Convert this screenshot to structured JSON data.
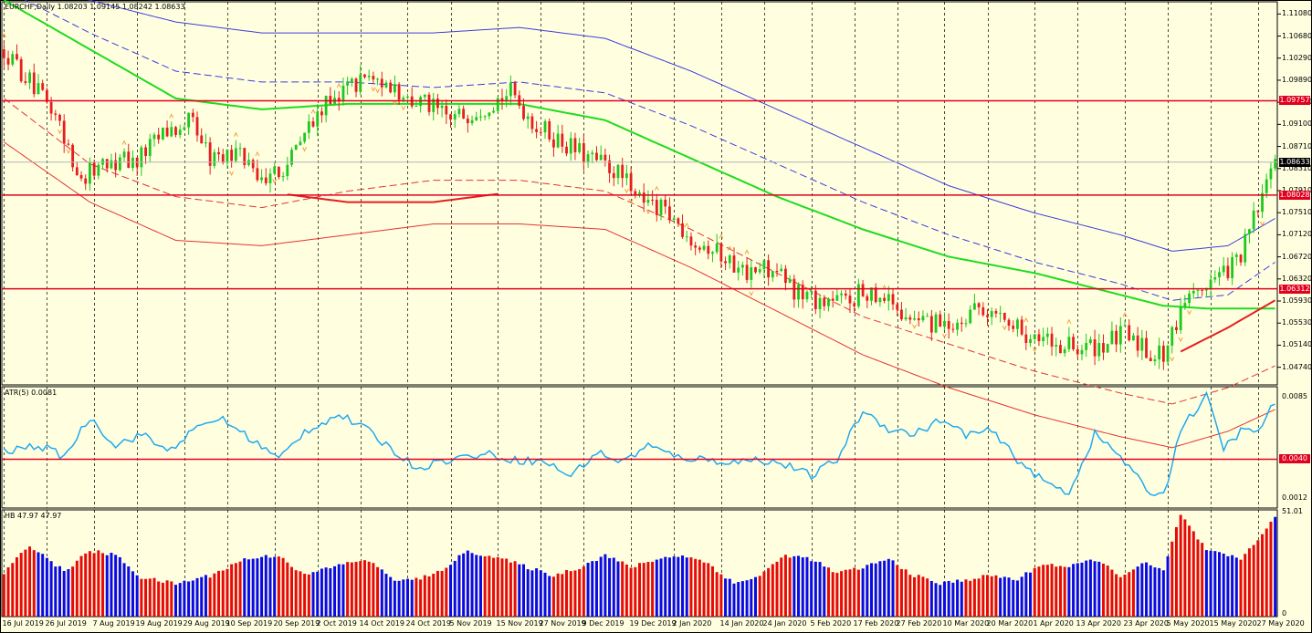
{
  "chart_data": [
    {
      "type": "candlestick",
      "panel": "price",
      "title": "EURCHF,Daily  1.08203 1.09145 1.08242 1.08633",
      "ylim": [
        1.0455,
        1.1157
      ],
      "ticks": [
        "1.11080",
        "1.10680",
        "1.10290",
        "1.09890",
        "1.09490",
        "1.09100",
        "1.08710",
        "1.08310",
        "1.07910",
        "1.07510",
        "1.07120",
        "1.06720",
        "1.06320",
        "1.05930",
        "1.05530",
        "1.05140",
        "1.04740"
      ],
      "price_lines": [
        {
          "value": 1.09757,
          "label": "1.09757",
          "color": "#e1001e"
        },
        {
          "value": 1.08028,
          "label": "1.08028",
          "color": "#e1001e"
        },
        {
          "value": 1.06312,
          "label": "1.06312",
          "color": "#e1001e"
        }
      ],
      "current_price": {
        "value": 1.08633,
        "label": "1.08633"
      },
      "anchor_closes": [
        [
          0,
          1.107
        ],
        [
          6,
          1.101
        ],
        [
          12,
          1.095
        ],
        [
          18,
          1.083
        ],
        [
          24,
          1.087
        ],
        [
          30,
          1.086
        ],
        [
          38,
          1.092
        ],
        [
          44,
          1.094
        ],
        [
          48,
          1.087
        ],
        [
          54,
          1.088
        ],
        [
          60,
          1.084
        ],
        [
          66,
          1.086
        ],
        [
          72,
          1.094
        ],
        [
          78,
          1.099
        ],
        [
          86,
          1.102
        ],
        [
          92,
          1.098
        ],
        [
          98,
          1.097
        ],
        [
          104,
          1.094
        ],
        [
          110,
          1.096
        ],
        [
          118,
          1.099
        ],
        [
          124,
          1.093
        ],
        [
          130,
          1.09
        ],
        [
          136,
          1.087
        ],
        [
          142,
          1.085
        ],
        [
          148,
          1.08
        ],
        [
          154,
          1.077
        ],
        [
          160,
          1.073
        ],
        [
          166,
          1.07
        ],
        [
          172,
          1.066
        ],
        [
          178,
          1.067
        ],
        [
          184,
          1.063
        ],
        [
          190,
          1.061
        ],
        [
          196,
          1.061
        ],
        [
          202,
          1.063
        ],
        [
          208,
          1.06
        ],
        [
          214,
          1.057
        ],
        [
          220,
          1.056
        ],
        [
          226,
          1.06
        ],
        [
          232,
          1.058
        ],
        [
          238,
          1.055
        ],
        [
          244,
          1.053
        ],
        [
          250,
          1.052
        ],
        [
          256,
          1.053
        ],
        [
          262,
          1.055
        ],
        [
          266,
          1.052
        ],
        [
          270,
          1.051
        ],
        [
          275,
          1.06
        ],
        [
          280,
          1.064
        ],
        [
          284,
          1.066
        ],
        [
          288,
          1.069
        ],
        [
          292,
          1.078
        ],
        [
          296,
          1.086
        ]
      ],
      "bands": {
        "green_ma": [
          [
            0,
            1.116
          ],
          [
            20,
            1.107
          ],
          [
            40,
            1.098
          ],
          [
            60,
            1.096
          ],
          [
            80,
            1.097
          ],
          [
            100,
            1.097
          ],
          [
            120,
            1.097
          ],
          [
            140,
            1.094
          ],
          [
            160,
            1.087
          ],
          [
            180,
            1.08
          ],
          [
            200,
            1.074
          ],
          [
            220,
            1.069
          ],
          [
            240,
            1.066
          ],
          [
            260,
            1.062
          ],
          [
            270,
            1.06
          ],
          [
            280,
            1.0595
          ],
          [
            296,
            1.0595
          ]
        ],
        "red_mid": [
          [
            0,
            1.101
          ],
          [
            20,
            1.093
          ],
          [
            40,
            1.085
          ],
          [
            60,
            1.081
          ],
          [
            80,
            1.079
          ],
          [
            100,
            1.079
          ],
          [
            120,
            1.081
          ],
          [
            140,
            1.08
          ],
          [
            160,
            1.074
          ],
          [
            180,
            1.066
          ],
          [
            200,
            1.06
          ],
          [
            220,
            1.055
          ],
          [
            240,
            1.052
          ],
          [
            260,
            1.05
          ],
          [
            270,
            1.05
          ],
          [
            285,
            1.056
          ],
          [
            296,
            1.061
          ]
        ],
        "blue_upper": [
          [
            0,
            1.12
          ],
          [
            20,
            1.116
          ],
          [
            40,
            1.112
          ],
          [
            60,
            1.11
          ],
          [
            80,
            1.11
          ],
          [
            100,
            1.11
          ],
          [
            120,
            1.111
          ],
          [
            140,
            1.109
          ],
          [
            160,
            1.103
          ],
          [
            180,
            1.096
          ],
          [
            200,
            1.089
          ],
          [
            220,
            1.082
          ],
          [
            240,
            1.077
          ],
          [
            260,
            1.073
          ],
          [
            272,
            1.07
          ],
          [
            285,
            1.071
          ],
          [
            296,
            1.076
          ]
        ],
        "blue_mid": [
          [
            0,
            1.118
          ],
          [
            20,
            1.11
          ],
          [
            40,
            1.103
          ],
          [
            60,
            1.101
          ],
          [
            80,
            1.101
          ],
          [
            100,
            1.1
          ],
          [
            120,
            1.101
          ],
          [
            140,
            1.099
          ],
          [
            160,
            1.093
          ],
          [
            180,
            1.086
          ],
          [
            200,
            1.079
          ],
          [
            220,
            1.073
          ],
          [
            240,
            1.068
          ],
          [
            260,
            1.064
          ],
          [
            272,
            1.061
          ],
          [
            285,
            1.062
          ],
          [
            296,
            1.068
          ]
        ],
        "red_lower": [
          [
            0,
            1.098
          ],
          [
            20,
            1.086
          ],
          [
            40,
            1.08
          ],
          [
            60,
            1.078
          ],
          [
            80,
            1.081
          ],
          [
            100,
            1.083
          ],
          [
            120,
            1.083
          ],
          [
            140,
            1.081
          ],
          [
            160,
            1.074
          ],
          [
            180,
            1.066
          ],
          [
            200,
            1.058
          ],
          [
            220,
            1.053
          ],
          [
            240,
            1.048
          ],
          [
            260,
            1.044
          ],
          [
            272,
            1.042
          ],
          [
            285,
            1.045
          ],
          [
            296,
            1.049
          ]
        ],
        "red_lower2": [
          [
            0,
            1.09
          ],
          [
            20,
            1.079
          ],
          [
            40,
            1.072
          ],
          [
            60,
            1.071
          ],
          [
            80,
            1.073
          ],
          [
            100,
            1.075
          ],
          [
            120,
            1.075
          ],
          [
            140,
            1.074
          ],
          [
            160,
            1.067
          ],
          [
            180,
            1.059
          ],
          [
            200,
            1.051
          ],
          [
            220,
            1.045
          ],
          [
            240,
            1.04
          ],
          [
            260,
            1.036
          ],
          [
            272,
            1.034
          ],
          [
            285,
            1.037
          ],
          [
            296,
            1.041
          ]
        ]
      }
    },
    {
      "type": "line",
      "panel": "atr",
      "title": "ATR(5) 0.0081",
      "ylim": [
        0.0005,
        0.0092
      ],
      "ticks": [
        "0.0085",
        "0.0012"
      ],
      "level_line": {
        "value": 0.004,
        "label": "0.0040"
      },
      "anchors": [
        [
          0,
          0.0045
        ],
        [
          8,
          0.005
        ],
        [
          14,
          0.0042
        ],
        [
          20,
          0.007
        ],
        [
          26,
          0.005
        ],
        [
          32,
          0.0058
        ],
        [
          38,
          0.0046
        ],
        [
          44,
          0.006
        ],
        [
          50,
          0.007
        ],
        [
          56,
          0.0058
        ],
        [
          64,
          0.004
        ],
        [
          70,
          0.006
        ],
        [
          78,
          0.0072
        ],
        [
          84,
          0.0062
        ],
        [
          90,
          0.0048
        ],
        [
          96,
          0.0034
        ],
        [
          104,
          0.004
        ],
        [
          112,
          0.0044
        ],
        [
          118,
          0.004
        ],
        [
          126,
          0.0038
        ],
        [
          132,
          0.0028
        ],
        [
          138,
          0.0045
        ],
        [
          144,
          0.0038
        ],
        [
          150,
          0.005
        ],
        [
          156,
          0.0042
        ],
        [
          162,
          0.004
        ],
        [
          170,
          0.0038
        ],
        [
          176,
          0.004
        ],
        [
          182,
          0.0036
        ],
        [
          188,
          0.0028
        ],
        [
          194,
          0.004
        ],
        [
          200,
          0.0075
        ],
        [
          206,
          0.0062
        ],
        [
          212,
          0.0058
        ],
        [
          218,
          0.0068
        ],
        [
          224,
          0.0058
        ],
        [
          230,
          0.006
        ],
        [
          236,
          0.004
        ],
        [
          242,
          0.0024
        ],
        [
          248,
          0.0016
        ],
        [
          254,
          0.0058
        ],
        [
          260,
          0.0042
        ],
        [
          266,
          0.0018
        ],
        [
          270,
          0.0014
        ],
        [
          274,
          0.0062
        ],
        [
          280,
          0.0085
        ],
        [
          284,
          0.0048
        ],
        [
          288,
          0.006
        ],
        [
          292,
          0.006
        ],
        [
          296,
          0.0081
        ]
      ]
    },
    {
      "type": "bar",
      "panel": "hb",
      "title": "HB 47.97 47.97",
      "ylim": [
        0,
        52
      ],
      "ticks": [
        "51.01",
        "0"
      ],
      "colors": {
        "up": "#e60a0a",
        "down": "#0a0ae6"
      },
      "anchors": [
        [
          0,
          21
        ],
        [
          6,
          35
        ],
        [
          14,
          22
        ],
        [
          20,
          32
        ],
        [
          26,
          30
        ],
        [
          32,
          19
        ],
        [
          40,
          16
        ],
        [
          48,
          20
        ],
        [
          56,
          28
        ],
        [
          64,
          30
        ],
        [
          70,
          20
        ],
        [
          76,
          24
        ],
        [
          84,
          28
        ],
        [
          92,
          17
        ],
        [
          100,
          20
        ],
        [
          108,
          32
        ],
        [
          116,
          28
        ],
        [
          122,
          24
        ],
        [
          128,
          20
        ],
        [
          134,
          24
        ],
        [
          140,
          30
        ],
        [
          146,
          24
        ],
        [
          152,
          28
        ],
        [
          158,
          30
        ],
        [
          164,
          26
        ],
        [
          170,
          16
        ],
        [
          176,
          20
        ],
        [
          182,
          30
        ],
        [
          188,
          28
        ],
        [
          194,
          21
        ],
        [
          200,
          24
        ],
        [
          206,
          28
        ],
        [
          212,
          20
        ],
        [
          218,
          16
        ],
        [
          224,
          18
        ],
        [
          230,
          20
        ],
        [
          236,
          18
        ],
        [
          242,
          26
        ],
        [
          248,
          24
        ],
        [
          254,
          28
        ],
        [
          260,
          20
        ],
        [
          266,
          26
        ],
        [
          270,
          22
        ],
        [
          274,
          50
        ],
        [
          280,
          32
        ],
        [
          284,
          30
        ],
        [
          288,
          28
        ],
        [
          292,
          38
        ],
        [
          296,
          48
        ]
      ]
    }
  ],
  "date_labels": [
    "16 Jul 2019",
    "26 Jul 2019",
    "7 Aug 2019",
    "19 Aug 2019",
    "29 Aug 2019",
    "10 Sep 2019",
    "20 Sep 2019",
    "2 Oct 2019",
    "14 Oct 2019",
    "24 Oct 2019",
    "5 Nov 2019",
    "15 Nov 2019",
    "27 Nov 2019",
    "9 Dec 2019",
    "19 Dec 2019",
    "2 Jan 2020",
    "14 Jan 2020",
    "24 Jan 2020",
    "5 Feb 2020",
    "17 Feb 2020",
    "27 Feb 2020",
    "10 Mar 2020",
    "20 Mar 2020",
    "1 Apr 2020",
    "13 Apr 2020",
    "23 Apr 2020",
    "5 May 2020",
    "15 May 2020",
    "27 May 2020"
  ]
}
